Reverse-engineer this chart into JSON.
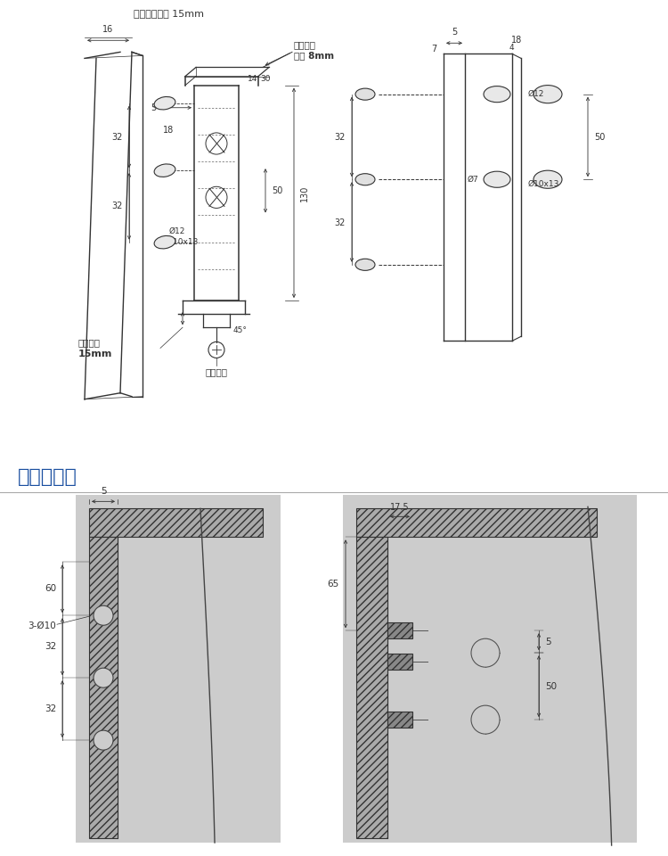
{
  "title_top": "高度平行调节 15mm",
  "section_title": "安装示意图",
  "bg_color_top": "#ffffff",
  "bg_color_bottom": "#c8c8c8",
  "line_color": "#333333",
  "dim_color": "#333333",
  "hatch_color": "#555555",
  "blue_title_color": "#1a4fa0",
  "anno_depth_dir": "深度方向",
  "anno_depth_val": "调节 8mm",
  "anno_height_adj": "高度调节",
  "anno_height_val": "15mm",
  "anno_lock_screw": "锁紧螺钉"
}
